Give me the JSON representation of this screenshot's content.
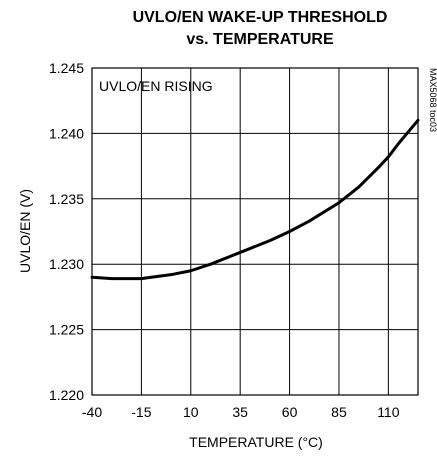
{
  "chart_data": {
    "type": "line",
    "title": "UVLO/EN WAKE-UP THRESHOLD",
    "subtitle": "vs. TEMPERATURE",
    "xlabel": "TEMPERATURE (°C)",
    "ylabel": "UVLO/EN (V)",
    "xlim": [
      -40,
      125
    ],
    "ylim": [
      1.22,
      1.245
    ],
    "x_ticks": [
      -40,
      -15,
      10,
      35,
      60,
      85,
      110
    ],
    "y_ticks": [
      1.22,
      1.225,
      1.23,
      1.235,
      1.24,
      1.245
    ],
    "x_tick_labels": [
      "-40",
      "-15",
      "10",
      "35",
      "60",
      "85",
      "110"
    ],
    "y_tick_labels": [
      "1.220",
      "1.225",
      "1.230",
      "1.235",
      "1.240",
      "1.245"
    ],
    "grid": true,
    "annotation": "UVLO/EN RISING",
    "code": "MAX5068 toc03",
    "series": [
      {
        "x": [
          -40,
          -30,
          -20,
          -15,
          -10,
          0,
          10,
          20,
          35,
          50,
          60,
          70,
          85,
          95,
          105,
          110,
          115,
          120,
          125
        ],
        "values": [
          1.229,
          1.2289,
          1.2289,
          1.2289,
          1.229,
          1.2292,
          1.2295,
          1.23,
          1.2309,
          1.2318,
          1.2325,
          1.2333,
          1.2347,
          1.2359,
          1.2374,
          1.2382,
          1.2392,
          1.2401,
          1.241
        ]
      }
    ]
  }
}
